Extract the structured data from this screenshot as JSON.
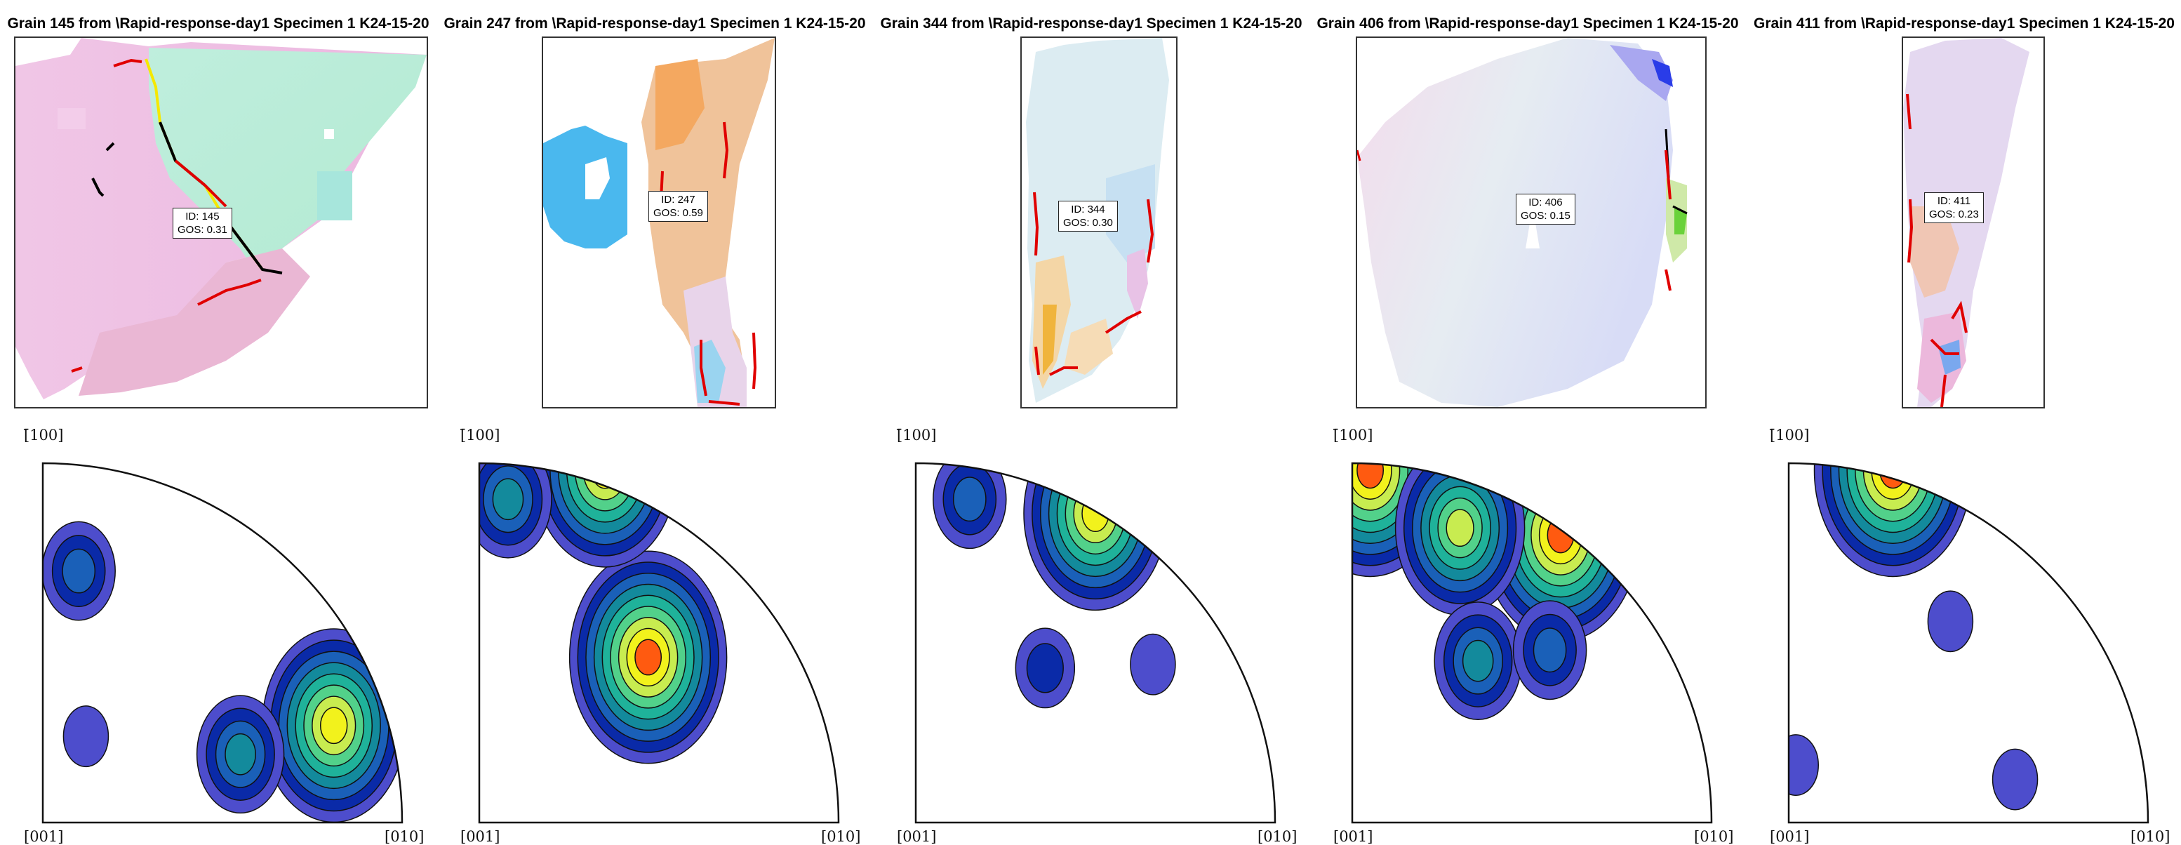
{
  "colors": {
    "boundary_red": "#e00000",
    "boundary_black": "#000000",
    "boundary_yellow": "#f5e800",
    "contour_levels": [
      "#4d4dcc",
      "#0a2aa8",
      "#1a60b8",
      "#138a9c",
      "#1fb29a",
      "#52d18a",
      "#c8ec50",
      "#f2f21c",
      "#ff5a10"
    ]
  },
  "pole_figure_axes": {
    "top": "[̄100]",
    "bottom_left": "[001]",
    "bottom_right": "[010]"
  },
  "panels": [
    {
      "title": "Grain 145 from \\Rapid-response-day1 Specimen 1 K24-15-20",
      "id_line": "ID: 145",
      "gos_line": "GOS: 0.31"
    },
    {
      "title": "Grain 247 from \\Rapid-response-day1 Specimen 1 K24-15-20",
      "id_line": "ID: 247",
      "gos_line": "GOS: 0.59"
    },
    {
      "title": "Grain 344 from \\Rapid-response-day1 Specimen 1 K24-15-20",
      "id_line": "ID: 344",
      "gos_line": "GOS: 0.30"
    },
    {
      "title": "Grain 406 from \\Rapid-response-day1 Specimen 1 K24-15-20",
      "id_line": "ID: 406",
      "gos_line": "GOS: 0.15"
    },
    {
      "title": "Grain 411 from \\Rapid-response-day1 Specimen 1 K24-15-20",
      "id_line": "ID: 411",
      "gos_line": "GOS: 0.23"
    }
  ],
  "chart_data": [
    {
      "type": "heatmap",
      "title": "Grain 145 from \\Rapid-response-day1 Specimen 1 K24-15-20",
      "grain_id": 145,
      "gos": 0.31,
      "pole_figure_peaks": [
        {
          "x": 0.81,
          "y": 0.27,
          "strength": 8
        },
        {
          "x": 0.55,
          "y": 0.19,
          "strength": 4
        },
        {
          "x": 0.1,
          "y": 0.7,
          "strength": 3
        },
        {
          "x": 0.12,
          "y": 0.24,
          "strength": 1
        }
      ]
    },
    {
      "type": "heatmap",
      "title": "Grain 247 from \\Rapid-response-day1 Specimen 1 K24-15-20",
      "grain_id": 247,
      "gos": 0.59,
      "pole_figure_peaks": [
        {
          "x": 0.47,
          "y": 0.46,
          "strength": 9
        },
        {
          "x": 0.35,
          "y": 0.98,
          "strength": 8
        },
        {
          "x": 0.08,
          "y": 0.9,
          "strength": 4
        }
      ]
    },
    {
      "type": "heatmap",
      "title": "Grain 344 from \\Rapid-response-day1 Specimen 1 K24-15-20",
      "grain_id": 344,
      "gos": 0.3,
      "pole_figure_peaks": [
        {
          "x": 0.5,
          "y": 0.86,
          "strength": 8
        },
        {
          "x": 0.15,
          "y": 0.9,
          "strength": 3
        },
        {
          "x": 0.36,
          "y": 0.43,
          "strength": 2
        },
        {
          "x": 0.66,
          "y": 0.44,
          "strength": 1
        }
      ]
    },
    {
      "type": "heatmap",
      "title": "Grain 406 from \\Rapid-response-day1 Specimen 1 K24-15-20",
      "grain_id": 406,
      "gos": 0.15,
      "pole_figure_peaks": [
        {
          "x": 0.05,
          "y": 0.98,
          "strength": 9
        },
        {
          "x": 0.58,
          "y": 0.8,
          "strength": 9
        },
        {
          "x": 0.3,
          "y": 0.82,
          "strength": 7
        },
        {
          "x": 0.35,
          "y": 0.45,
          "strength": 4
        },
        {
          "x": 0.55,
          "y": 0.48,
          "strength": 3
        }
      ]
    },
    {
      "type": "heatmap",
      "title": "Grain 411 from \\Rapid-response-day1 Specimen 1 K24-15-20",
      "grain_id": 411,
      "gos": 0.23,
      "pole_figure_peaks": [
        {
          "x": 0.29,
          "y": 0.98,
          "strength": 9
        },
        {
          "x": 0.45,
          "y": 0.56,
          "strength": 1
        },
        {
          "x": 0.63,
          "y": 0.12,
          "strength": 1
        },
        {
          "x": 0.02,
          "y": 0.16,
          "strength": 1
        }
      ]
    }
  ]
}
